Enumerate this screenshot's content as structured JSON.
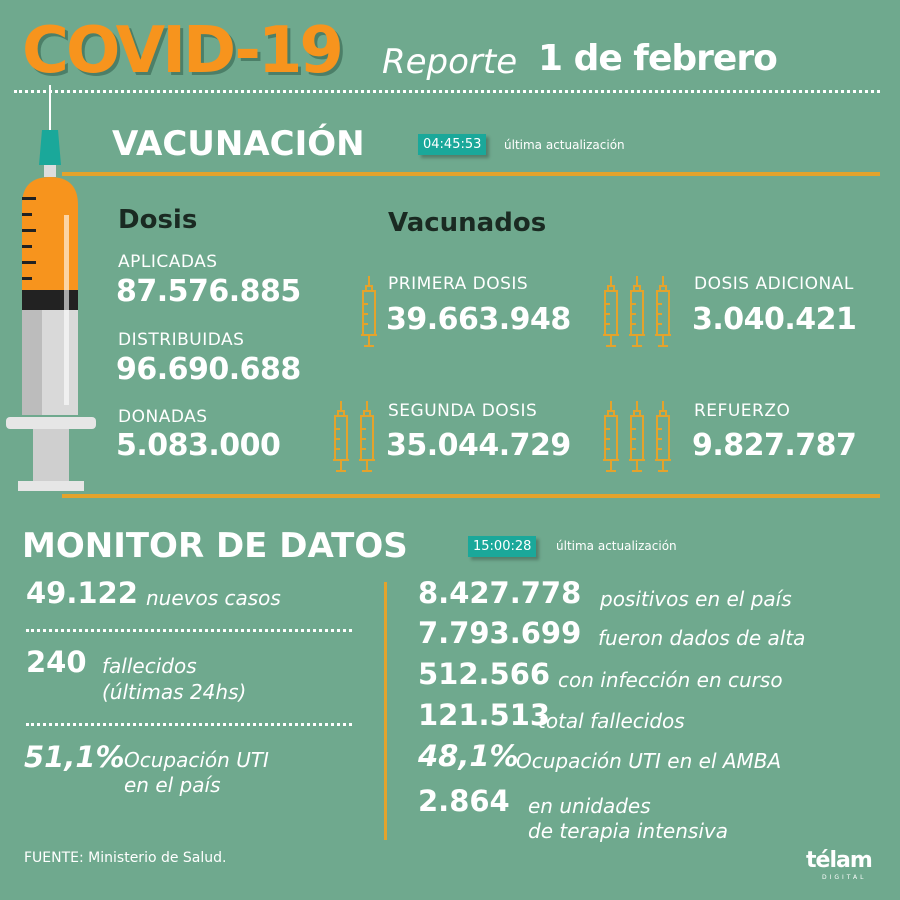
{
  "header": {
    "title": "COVID-19",
    "report_label": "Reporte",
    "date": "1 de febrero"
  },
  "vacunacion": {
    "title": "VACUNACIÓN",
    "time": "04:45:53",
    "update_label": "última actualización",
    "dosis": {
      "title": "Dosis",
      "items": [
        {
          "label": "APLICADAS",
          "value": "87.576.885"
        },
        {
          "label": "DISTRIBUIDAS",
          "value": "96.690.688"
        },
        {
          "label": "DONADAS",
          "value": "5.083.000"
        }
      ]
    },
    "vacunados": {
      "title": "Vacunados",
      "items": [
        {
          "label": "PRIMERA DOSIS",
          "value": "39.663.948",
          "icon": "syringe-icon"
        },
        {
          "label": "DOSIS ADICIONAL",
          "value": "3.040.421",
          "icon": "syringe-icon"
        },
        {
          "label": "SEGUNDA DOSIS",
          "value": "35.044.729",
          "icon": "syringe-icon"
        },
        {
          "label": "REFUERZO",
          "value": "9.827.787",
          "icon": "syringe-icon"
        }
      ]
    }
  },
  "monitor": {
    "title": "MONITOR DE DATOS",
    "time": "15:00:28",
    "update_label": "última actualización",
    "left": [
      {
        "value": "49.122",
        "text": "nuevos casos"
      },
      {
        "value": "240",
        "text": "fallecidos",
        "text2": "(últimas 24hs)"
      },
      {
        "value": "51,1%",
        "text": "Ocupación UTI",
        "text2": "en el país"
      }
    ],
    "right": [
      {
        "value": "8.427.778",
        "text": "positivos en el país"
      },
      {
        "value": "7.793.699",
        "text": "fueron dados de alta"
      },
      {
        "value": "512.566",
        "text": "con infección en curso"
      },
      {
        "value": "121.513",
        "text": "total fallecidos"
      },
      {
        "value": "48,1%",
        "text": "Ocupación UTI en el AMBA"
      },
      {
        "value": "2.864",
        "text": "en unidades",
        "text2": "de terapia intensiva"
      }
    ]
  },
  "footer": {
    "source": "FUENTE: Ministerio de Salud.",
    "logo": "télam",
    "logo_sub": "DIGITAL"
  },
  "colors": {
    "background": "#6fa98e",
    "accent": "#f7941d",
    "line": "#e4a32c",
    "badge": "#1aa89a"
  }
}
